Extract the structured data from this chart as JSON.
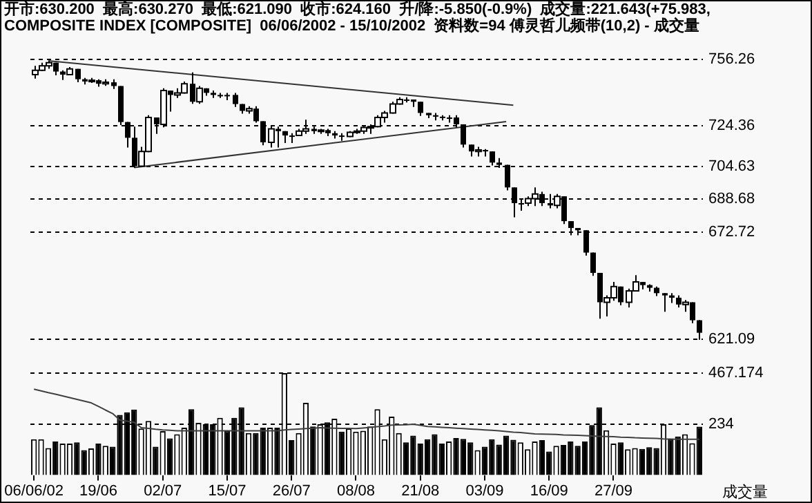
{
  "chart_data": [
    {
      "type": "candlestick",
      "title": "开市:630.200  最高:630.270  最低:621.090  收市:624.160  升/降:-5.850(-0.9%)  成交量:221.643(+75.983,",
      "subtitle": "COMPOSITE INDEX [COMPOSITE]  06/06/2002 - 15/10/2002  资料数=94 傅灵哲儿频带(10,2) - 成交量",
      "categories": [
        null,
        null,
        null,
        null,
        null,
        null,
        null,
        null,
        null,
        null,
        null,
        null,
        null,
        null,
        null,
        null,
        null,
        null,
        null,
        null,
        null,
        null,
        null,
        null,
        null,
        null,
        null,
        null,
        null,
        null,
        null,
        null,
        null,
        null,
        null,
        null,
        null,
        null,
        null,
        null,
        null,
        null,
        null,
        null,
        null,
        null,
        null,
        null,
        null,
        null,
        null,
        null,
        null,
        null,
        null,
        null,
        null,
        null,
        null,
        null,
        null,
        null,
        null,
        null,
        null,
        null,
        null,
        null,
        null,
        null,
        null,
        null,
        null,
        null,
        null,
        null,
        null,
        null,
        null,
        null,
        null,
        null,
        null,
        null,
        null,
        null,
        null,
        null,
        null,
        null,
        null,
        null,
        null,
        null
      ],
      "ohlc": [
        [
          748.9,
          753.2,
          747.3,
          751.0
        ],
        [
          751.0,
          754.7,
          751.0,
          753.2
        ],
        [
          753.2,
          755.4,
          752.1,
          754.7
        ],
        [
          754.7,
          754.7,
          748.9,
          750.4
        ],
        [
          750.4,
          751.0,
          746.7,
          748.9
        ],
        [
          748.9,
          752.6,
          748.9,
          751.7
        ],
        [
          751.7,
          751.7,
          745.6,
          746.7
        ],
        [
          746.7,
          747.3,
          744.5,
          745.6
        ],
        [
          745.6,
          747.3,
          745.2,
          746.2
        ],
        [
          746.2,
          746.7,
          743.4,
          744.5
        ],
        [
          744.5,
          746.7,
          743.8,
          745.2
        ],
        [
          745.2,
          746.7,
          742.3,
          743.4
        ],
        [
          743.4,
          743.4,
          724.9,
          726.0
        ],
        [
          726.0,
          726.0,
          714.0,
          718.4
        ],
        [
          718.4,
          723.8,
          704.2,
          704.7
        ],
        [
          704.7,
          714.0,
          704.7,
          711.8
        ],
        [
          711.8,
          729.3,
          711.8,
          728.2
        ],
        [
          728.2,
          728.2,
          720.6,
          724.9
        ],
        [
          724.9,
          742.3,
          723.8,
          741.2
        ],
        [
          741.2,
          741.2,
          731.4,
          739.1
        ],
        [
          739.1,
          742.3,
          738.0,
          740.1
        ],
        [
          740.1,
          745.6,
          740.1,
          744.5
        ],
        [
          744.5,
          750.0,
          735.1,
          735.8
        ],
        [
          735.8,
          743.4,
          735.1,
          742.3
        ],
        [
          742.3,
          742.3,
          739.1,
          740.1
        ],
        [
          740.1,
          741.2,
          738.0,
          739.1
        ],
        [
          739.1,
          740.1,
          738.0,
          739.1
        ],
        [
          739.1,
          740.1,
          736.9,
          739.1
        ],
        [
          739.1,
          740.1,
          733.6,
          734.7
        ],
        [
          734.7,
          734.7,
          730.4,
          731.4
        ],
        [
          731.4,
          733.6,
          730.4,
          732.5
        ],
        [
          732.5,
          733.6,
          726.0,
          726.4
        ],
        [
          726.4,
          726.4,
          715.1,
          716.2
        ],
        [
          716.2,
          724.3,
          714.0,
          722.7
        ],
        [
          722.7,
          723.8,
          714.0,
          721.6
        ],
        [
          721.6,
          721.6,
          716.2,
          719.5
        ],
        [
          719.5,
          720.6,
          716.2,
          719.5
        ],
        [
          719.5,
          722.7,
          719.5,
          721.6
        ],
        [
          721.6,
          727.1,
          720.6,
          722.7
        ],
        [
          722.7,
          723.8,
          720.6,
          721.6
        ],
        [
          721.6,
          722.7,
          720.6,
          722.1
        ],
        [
          722.1,
          722.7,
          719.5,
          720.6
        ],
        [
          720.6,
          721.6,
          718.4,
          719.5
        ],
        [
          719.5,
          720.6,
          717.3,
          719.0
        ],
        [
          719.0,
          721.6,
          719.0,
          721.0
        ],
        [
          721.0,
          722.7,
          720.6,
          721.6
        ],
        [
          721.6,
          723.8,
          720.6,
          723.4
        ],
        [
          723.4,
          724.9,
          720.6,
          723.8
        ],
        [
          723.8,
          729.3,
          723.8,
          728.2
        ],
        [
          728.2,
          731.4,
          726.0,
          730.4
        ],
        [
          730.4,
          735.8,
          730.4,
          734.7
        ],
        [
          734.7,
          738.0,
          734.7,
          736.9
        ],
        [
          736.9,
          738.0,
          735.8,
          736.9
        ],
        [
          736.9,
          736.9,
          733.6,
          735.8
        ],
        [
          735.8,
          735.8,
          729.3,
          730.4
        ],
        [
          730.4,
          730.4,
          728.2,
          729.3
        ],
        [
          729.3,
          730.4,
          727.1,
          728.6
        ],
        [
          728.6,
          729.3,
          727.1,
          728.2
        ],
        [
          728.2,
          729.3,
          726.0,
          728.2
        ],
        [
          728.2,
          729.3,
          723.8,
          724.9
        ],
        [
          724.9,
          724.9,
          714.0,
          715.1
        ],
        [
          715.1,
          715.1,
          709.7,
          711.8
        ],
        [
          711.8,
          714.0,
          709.7,
          712.5
        ],
        [
          712.5,
          712.9,
          709.7,
          711.8
        ],
        [
          711.8,
          711.8,
          705.3,
          706.4
        ],
        [
          706.4,
          708.6,
          704.2,
          705.3
        ],
        [
          705.3,
          705.3,
          693.3,
          694.4
        ],
        [
          694.4,
          694.4,
          680.3,
          686.8
        ],
        [
          686.8,
          689.0,
          683.5,
          686.8
        ],
        [
          686.8,
          690.1,
          685.7,
          689.0
        ],
        [
          689.0,
          694.4,
          685.7,
          691.2
        ],
        [
          691.2,
          692.3,
          685.7,
          686.8
        ],
        [
          686.8,
          691.2,
          684.6,
          685.7
        ],
        [
          685.7,
          691.2,
          684.6,
          690.1
        ],
        [
          690.1,
          690.1,
          677.0,
          678.1
        ],
        [
          678.1,
          678.1,
          671.6,
          674.8
        ],
        [
          674.8,
          674.8,
          671.6,
          673.7
        ],
        [
          673.7,
          673.7,
          661.8,
          662.9
        ],
        [
          662.9,
          662.9,
          652.0,
          653.1
        ],
        [
          653.1,
          653.1,
          631.3,
          638.9
        ],
        [
          638.9,
          642.2,
          632.4,
          641.1
        ],
        [
          641.1,
          648.7,
          640.0,
          646.5
        ],
        [
          646.5,
          646.5,
          637.8,
          638.9
        ],
        [
          638.9,
          645.5,
          636.7,
          644.4
        ],
        [
          644.4,
          652.0,
          644.4,
          648.7
        ],
        [
          648.7,
          648.7,
          645.5,
          647.2
        ],
        [
          647.2,
          647.6,
          644.4,
          645.9
        ],
        [
          645.9,
          646.5,
          642.2,
          643.3
        ],
        [
          643.3,
          643.3,
          634.6,
          642.2
        ],
        [
          642.2,
          643.3,
          638.9,
          641.1
        ],
        [
          641.1,
          642.2,
          636.7,
          637.8
        ],
        [
          637.8,
          640.0,
          634.6,
          638.9
        ],
        [
          638.9,
          638.9,
          629.1,
          630.2
        ],
        [
          630.2,
          630.27,
          621.09,
          624.16
        ]
      ],
      "series": [
        {
          "type": "line",
          "color": "#333333",
          "values": [
            null,
            null,
            755.6,
            null,
            null,
            null,
            null,
            null,
            null,
            null,
            null,
            null,
            null,
            null,
            null,
            null,
            null,
            null,
            null,
            null,
            null,
            null,
            null,
            null,
            null,
            null,
            null,
            null,
            null,
            null,
            null,
            null,
            null,
            null,
            null,
            null,
            null,
            null,
            null,
            null,
            null,
            null,
            null,
            null,
            null,
            null,
            null,
            null,
            null,
            null,
            null,
            null,
            null,
            null,
            null,
            null,
            null,
            null,
            null,
            null,
            null,
            null,
            null,
            null,
            null,
            null,
            null,
            734.1,
            null,
            null,
            null,
            null,
            null,
            null,
            null,
            null,
            null,
            null,
            null,
            null,
            null,
            null,
            null,
            null,
            null,
            null,
            null,
            null,
            null,
            null,
            null,
            null,
            null,
            null
          ]
        },
        {
          "type": "line",
          "color": "#333333",
          "values": [
            null,
            null,
            null,
            null,
            null,
            null,
            null,
            null,
            null,
            null,
            null,
            null,
            null,
            null,
            704.0,
            null,
            null,
            null,
            null,
            null,
            null,
            null,
            null,
            null,
            null,
            null,
            null,
            null,
            null,
            null,
            null,
            null,
            null,
            null,
            null,
            null,
            null,
            null,
            null,
            null,
            null,
            null,
            null,
            null,
            null,
            null,
            null,
            null,
            null,
            null,
            null,
            null,
            null,
            null,
            null,
            null,
            null,
            null,
            null,
            null,
            null,
            null,
            null,
            null,
            null,
            null,
            726.2,
            null,
            null,
            null,
            null,
            null,
            null,
            null,
            null,
            null,
            null,
            null,
            null,
            null,
            null,
            null,
            null,
            null,
            null,
            null,
            null,
            null,
            null,
            null,
            null,
            null,
            null,
            null
          ]
        }
      ],
      "ylim": [
        621.09,
        756.26
      ],
      "yticks": [
        621.09,
        672.72,
        688.68,
        704.63,
        724.36,
        756.26
      ],
      "grid": "y",
      "tick_labels": "y",
      "marker": "none"
    },
    {
      "type": "bar",
      "ylabel": "成交量",
      "categories": [
        "06/06/02",
        null,
        null,
        null,
        null,
        null,
        null,
        null,
        null,
        "19/06",
        null,
        null,
        null,
        null,
        null,
        null,
        null,
        null,
        "02/07",
        null,
        null,
        null,
        null,
        null,
        null,
        null,
        null,
        "15/07",
        null,
        null,
        null,
        null,
        null,
        null,
        null,
        null,
        "26/07",
        null,
        null,
        null,
        null,
        null,
        null,
        null,
        null,
        "08/08",
        null,
        null,
        null,
        null,
        null,
        null,
        null,
        null,
        "21/08",
        null,
        null,
        null,
        null,
        null,
        null,
        null,
        null,
        "03/09",
        null,
        null,
        null,
        null,
        null,
        null,
        null,
        null,
        "16/09",
        null,
        null,
        null,
        null,
        null,
        null,
        null,
        null,
        "27/09",
        null,
        null,
        null,
        null,
        null,
        null,
        null,
        null,
        null,
        null,
        null,
        null
      ],
      "series": [
        {
          "type": "bar",
          "colors": [
            "#ffffff",
            "#ffffff",
            "#ffffff",
            "#000000",
            "#ffffff",
            "#ffffff",
            "#000000",
            "#000000",
            "#ffffff",
            "#000000",
            "#ffffff",
            "#000000",
            "#000000",
            "#000000",
            "#000000",
            "#ffffff",
            "#ffffff",
            "#000000",
            "#ffffff",
            "#000000",
            "#ffffff",
            "#ffffff",
            "#000000",
            "#ffffff",
            "#000000",
            "#000000",
            "#ffffff",
            "#000000",
            "#000000",
            "#000000",
            "#ffffff",
            "#000000",
            "#000000",
            "#ffffff",
            "#000000",
            "#ffffff",
            "#000000",
            "#ffffff",
            "#ffffff",
            "#000000",
            "#ffffff",
            "#000000",
            "#ffffff",
            "#000000",
            "#ffffff",
            "#ffffff",
            "#ffffff",
            "#ffffff",
            "#ffffff",
            "#ffffff",
            "#ffffff",
            "#ffffff",
            "#000000",
            "#000000",
            "#000000",
            "#000000",
            "#000000",
            "#000000",
            "#ffffff",
            "#000000",
            "#000000",
            "#000000",
            "#ffffff",
            "#000000",
            "#000000",
            "#000000",
            "#000000",
            "#000000",
            "#ffffff",
            "#ffffff",
            "#ffffff",
            "#000000",
            "#000000",
            "#ffffff",
            "#000000",
            "#000000",
            "#000000",
            "#000000",
            "#000000",
            "#000000",
            "#ffffff",
            "#ffffff",
            "#000000",
            "#ffffff",
            "#ffffff",
            "#000000",
            "#000000",
            "#000000",
            "#ffffff",
            "#000000",
            "#000000",
            "#ffffff",
            "#ffffff",
            "#000000"
          ],
          "values": [
            164,
            164,
            124,
            154,
            144,
            144,
            150,
            114,
            122,
            144,
            134,
            130,
            276,
            288,
            300,
            213,
            248,
            130,
            201,
            168,
            187,
            217,
            302,
            239,
            233,
            233,
            262,
            203,
            262,
            311,
            193,
            193,
            217,
            217,
            217,
            467,
            160,
            193,
            331,
            223,
            233,
            242,
            258,
            199,
            213,
            199,
            203,
            223,
            302,
            164,
            268,
            193,
            150,
            181,
            144,
            164,
            187,
            144,
            154,
            170,
            166,
            150,
            114,
            130,
            164,
            140,
            181,
            162,
            150,
            118,
            154,
            160,
            108,
            134,
            138,
            154,
            134,
            154,
            229,
            311,
            205,
            144,
            150,
            118,
            124,
            120,
            128,
            124,
            233,
            164,
            177,
            187,
            146,
            221.643
          ]
        },
        {
          "type": "line",
          "color": "#404040",
          "values": [
            394,
            386,
            378,
            371,
            363,
            355,
            347,
            339,
            331,
            315,
            298,
            282,
            252,
            247,
            242,
            217,
            214,
            210,
            207,
            205,
            203,
            203,
            203,
            203,
            203,
            203,
            203,
            203,
            203,
            203,
            203,
            203,
            203,
            203,
            203,
            207,
            209,
            211,
            213,
            215,
            217,
            216,
            215,
            214,
            214,
            213,
            216,
            219,
            222,
            225,
            229,
            230,
            231,
            233,
            228,
            223,
            221,
            219,
            217,
            215,
            213,
            211,
            209,
            207,
            205,
            203,
            200,
            197,
            195,
            192,
            189,
            188,
            187,
            186,
            184,
            183,
            182,
            181,
            179,
            178,
            177,
            176,
            174,
            173,
            171,
            170,
            169,
            168,
            166,
            165,
            164,
            164,
            164,
            164
          ]
        }
      ],
      "ylim": [
        0,
        480
      ],
      "yticks": [
        234,
        467.174
      ],
      "grid": "y",
      "marker": "none"
    }
  ]
}
